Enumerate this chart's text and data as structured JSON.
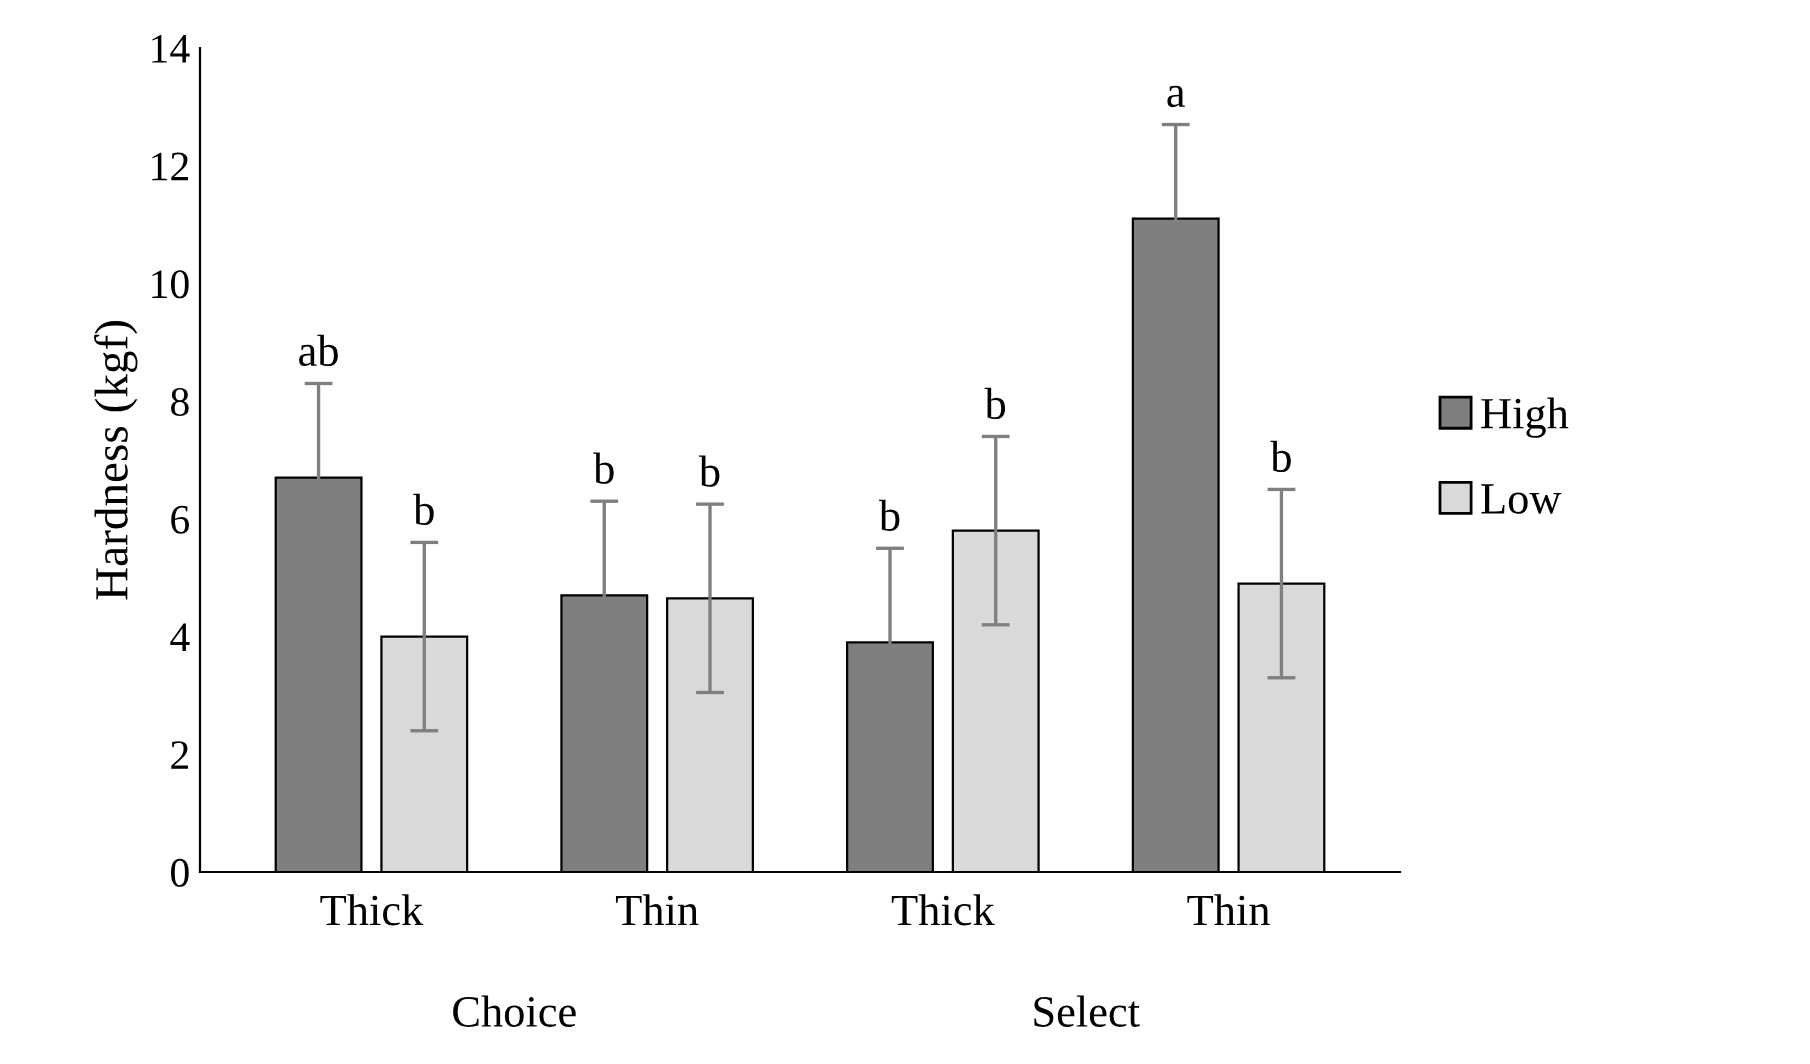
{
  "chart_data": {
    "type": "bar",
    "ylabel": "Hardness (kgf)",
    "categories": [
      "Thick",
      "Thin",
      "Thick",
      "Thin"
    ],
    "series": [
      {
        "name": "High",
        "color": "#7f7f7f",
        "values": [
          6.7,
          4.7,
          3.9,
          11.1
        ],
        "errors": [
          1.6,
          1.6,
          1.6,
          1.6
        ],
        "value_labels": [
          "ab",
          "b",
          "b",
          "a"
        ]
      },
      {
        "name": "Low",
        "color": "#d9d9d9",
        "values": [
          4.0,
          4.65,
          5.8,
          4.9
        ],
        "errors": [
          1.6,
          1.6,
          1.6,
          1.6
        ],
        "value_labels": [
          "b",
          "b",
          "b",
          "b"
        ]
      }
    ],
    "annotations": [
      "Choice",
      "Select"
    ],
    "ylim": [
      0,
      14
    ],
    "yticks": [
      0,
      2,
      4,
      6,
      8,
      10,
      12,
      14
    ],
    "grid": false,
    "legend": "right"
  }
}
